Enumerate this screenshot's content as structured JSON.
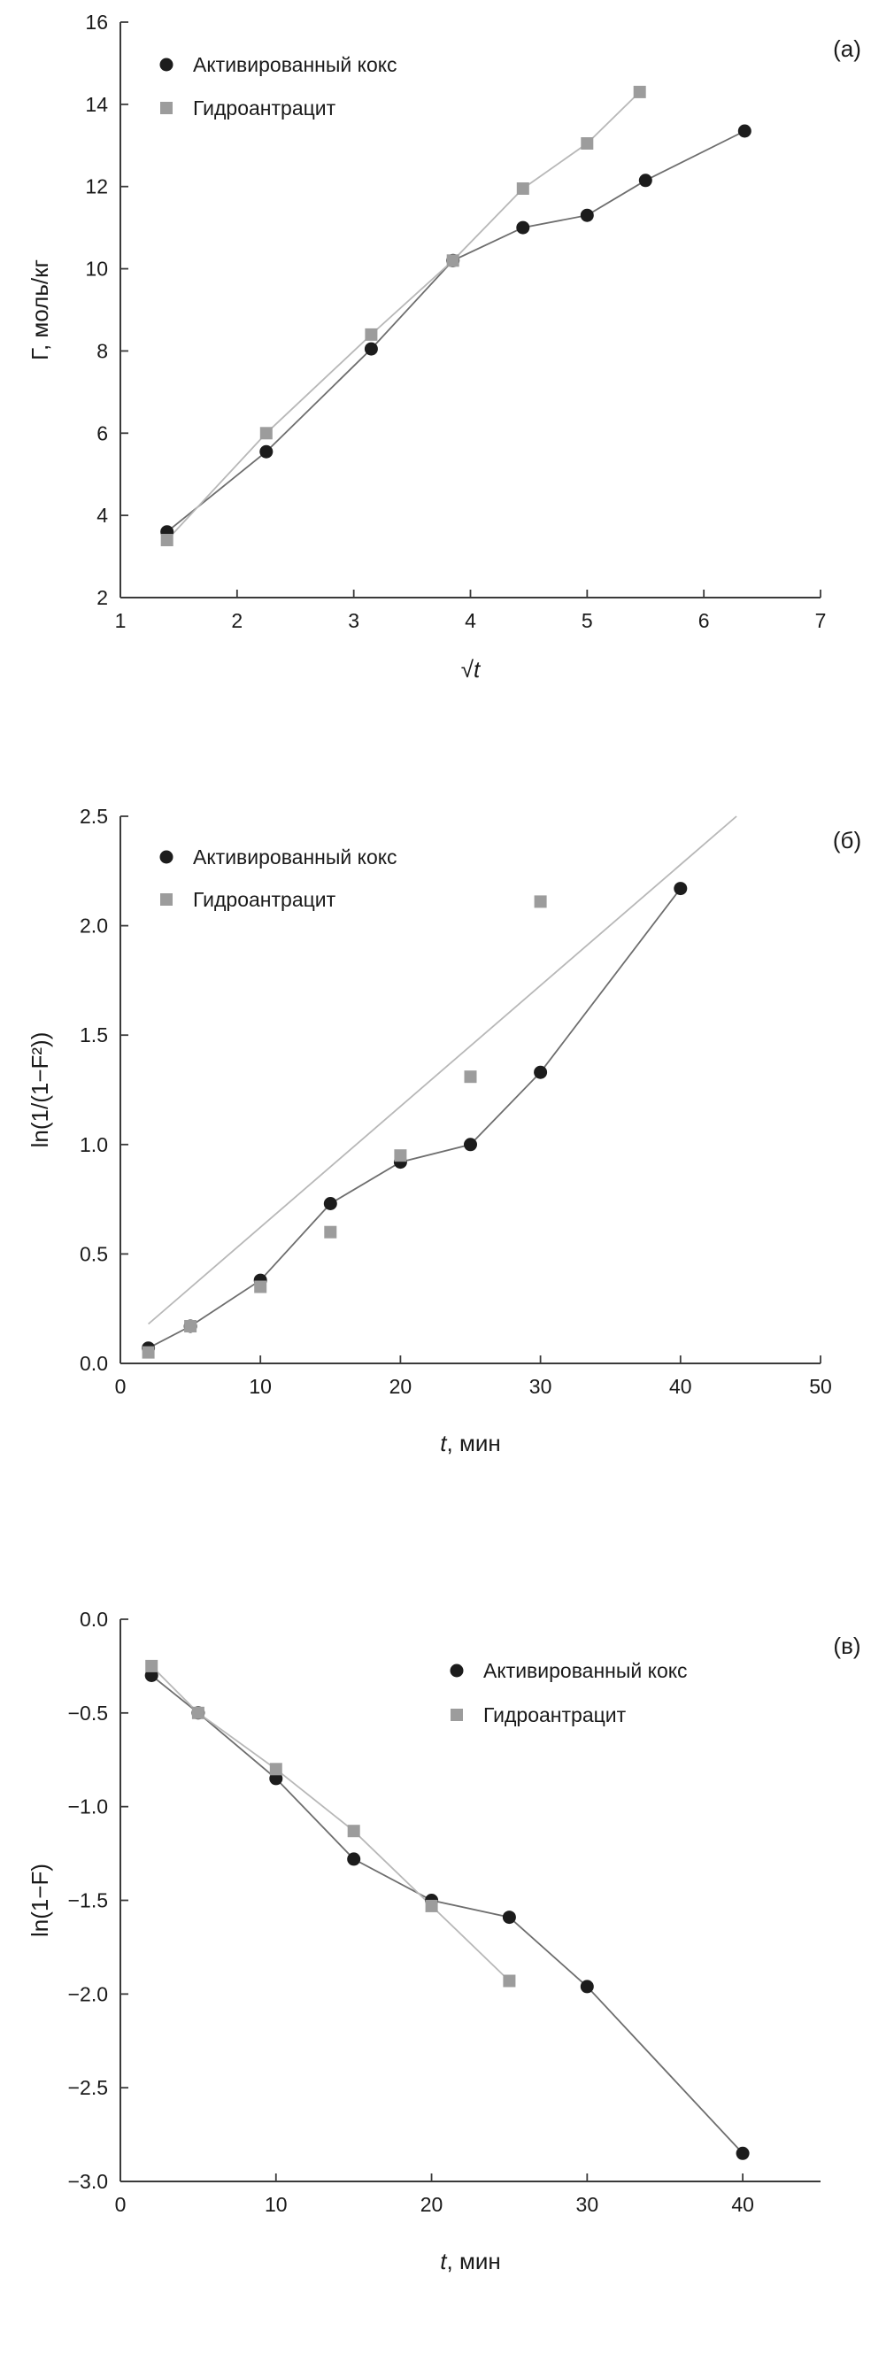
{
  "page": {
    "background": "#ffffff"
  },
  "colors": {
    "series1_marker": "#1c1c1c",
    "series2_marker": "#9c9c9c",
    "dark_line": "#6e6e6e",
    "light_line": "#b8b8b8",
    "axis": "#3a3a3a",
    "text": "#1a1a1a"
  },
  "chart_data": [
    {
      "id": "a",
      "type": "scatter",
      "corner_label": "(а)",
      "ylabel": "Г, моль/кг",
      "xlabel_parts": [
        {
          "text": "√",
          "italic": false
        },
        {
          "text": "t",
          "italic": true
        }
      ],
      "xlim": [
        1,
        7
      ],
      "ylim": [
        2,
        16
      ],
      "xticks": [
        1,
        2,
        3,
        4,
        5,
        6,
        7
      ],
      "xtick_labels": [
        "1",
        "2",
        "3",
        "4",
        "5",
        "6",
        "7"
      ],
      "yticks": [
        2,
        4,
        6,
        8,
        10,
        12,
        14,
        16
      ],
      "ytick_labels": [
        "2",
        "4",
        "6",
        "8",
        "10",
        "12",
        "14",
        "16"
      ],
      "legend": {
        "position": "top-left",
        "items": [
          {
            "label": "Активированный кокс",
            "marker": "circle",
            "color": "#1c1c1c"
          },
          {
            "label": "Гидроантрацит",
            "marker": "square",
            "color": "#9c9c9c"
          }
        ]
      },
      "series": [
        {
          "name": "Активированный кокс",
          "marker": "circle",
          "color": "#1c1c1c",
          "points": [
            [
              1.4,
              3.6
            ],
            [
              2.25,
              5.55
            ],
            [
              3.15,
              8.05
            ],
            [
              3.85,
              10.2
            ],
            [
              4.45,
              11.0
            ],
            [
              5.0,
              11.3
            ],
            [
              5.5,
              12.15
            ],
            [
              6.35,
              13.35
            ]
          ]
        },
        {
          "name": "Гидроантрацит",
          "marker": "square",
          "color": "#9c9c9c",
          "points": [
            [
              1.4,
              3.4
            ],
            [
              2.25,
              6.0
            ],
            [
              3.15,
              8.4
            ],
            [
              3.85,
              10.2
            ],
            [
              4.45,
              11.95
            ],
            [
              5.0,
              13.05
            ],
            [
              5.45,
              14.3
            ]
          ]
        }
      ],
      "lines": [
        {
          "series": "Активированный кокс",
          "color": "#6e6e6e",
          "width": 1.8,
          "points": [
            [
              1.4,
              3.6
            ],
            [
              2.25,
              5.55
            ],
            [
              3.15,
              8.05
            ],
            [
              3.85,
              10.2
            ],
            [
              4.45,
              11.0
            ],
            [
              5.0,
              11.3
            ],
            [
              5.5,
              12.15
            ],
            [
              6.35,
              13.35
            ]
          ]
        },
        {
          "series": "Гидроантрацит",
          "color": "#b8b8b8",
          "width": 1.8,
          "points": [
            [
              1.4,
              3.4
            ],
            [
              2.25,
              6.0
            ],
            [
              3.15,
              8.4
            ],
            [
              3.85,
              10.2
            ],
            [
              4.45,
              11.95
            ],
            [
              5.0,
              13.05
            ],
            [
              5.45,
              14.3
            ]
          ]
        }
      ]
    },
    {
      "id": "b",
      "type": "scatter",
      "corner_label": "(б)",
      "ylabel": "ln(1/(1−F²))",
      "xlabel_parts": [
        {
          "text": "t",
          "italic": true
        },
        {
          "text": ", мин",
          "italic": false
        }
      ],
      "xlim": [
        0,
        50
      ],
      "ylim": [
        0,
        2.5
      ],
      "xticks": [
        0,
        10,
        20,
        30,
        40,
        50
      ],
      "xtick_labels": [
        "0",
        "10",
        "20",
        "30",
        "40",
        "50"
      ],
      "yticks": [
        0,
        0.5,
        1,
        1.5,
        2,
        2.5
      ],
      "ytick_labels": [
        "0.0",
        "0.5",
        "1.0",
        "1.5",
        "2.0",
        "2.5"
      ],
      "legend": {
        "position": "top-left",
        "items": [
          {
            "label": "Активированный кокс",
            "marker": "circle",
            "color": "#1c1c1c"
          },
          {
            "label": "Гидроантрацит",
            "marker": "square",
            "color": "#9c9c9c"
          }
        ]
      },
      "series": [
        {
          "name": "Активированный кокс",
          "marker": "circle",
          "color": "#1c1c1c",
          "points": [
            [
              2,
              0.07
            ],
            [
              5,
              0.17
            ],
            [
              10,
              0.38
            ],
            [
              15,
              0.73
            ],
            [
              20,
              0.92
            ],
            [
              25,
              1.0
            ],
            [
              30,
              1.33
            ],
            [
              40,
              2.17
            ]
          ]
        },
        {
          "name": "Гидроантрацит",
          "marker": "square",
          "color": "#9c9c9c",
          "points": [
            [
              2,
              0.05
            ],
            [
              5,
              0.17
            ],
            [
              10,
              0.35
            ],
            [
              15,
              0.6
            ],
            [
              20,
              0.95
            ],
            [
              25,
              1.31
            ],
            [
              30,
              2.11
            ]
          ]
        }
      ],
      "lines": [
        {
          "series": "Активированный кокс",
          "color": "#6e6e6e",
          "width": 1.8,
          "points": [
            [
              2,
              0.07
            ],
            [
              5,
              0.17
            ],
            [
              10,
              0.38
            ],
            [
              15,
              0.73
            ],
            [
              20,
              0.92
            ],
            [
              25,
              1.0
            ],
            [
              30,
              1.33
            ],
            [
              40,
              2.17
            ]
          ]
        },
        {
          "series": "Гидроантрацит",
          "color": "#b8b8b8",
          "width": 1.8,
          "points": [
            [
              2,
              0.18
            ],
            [
              44,
              2.5
            ]
          ]
        }
      ]
    },
    {
      "id": "v",
      "type": "scatter",
      "corner_label": "(в)",
      "ylabel": "ln(1−F)",
      "xlabel_parts": [
        {
          "text": "t",
          "italic": true
        },
        {
          "text": ", мин",
          "italic": false
        }
      ],
      "xlim": [
        0,
        45
      ],
      "ylim": [
        -3,
        0
      ],
      "xticks": [
        0,
        10,
        20,
        30,
        40
      ],
      "xtick_labels": [
        "0",
        "10",
        "20",
        "30",
        "40"
      ],
      "yticks": [
        -3,
        -2.5,
        -2,
        -1.5,
        -1,
        -0.5,
        0
      ],
      "ytick_labels": [
        "−3.0",
        "−2.5",
        "−2.0",
        "−1.5",
        "−1.0",
        "−0.5",
        "0.0"
      ],
      "legend": {
        "position": "top-center-right",
        "items": [
          {
            "label": "Активированный кокс",
            "marker": "circle",
            "color": "#1c1c1c"
          },
          {
            "label": "Гидроантрацит",
            "marker": "square",
            "color": "#9c9c9c"
          }
        ]
      },
      "series": [
        {
          "name": "Активированный кокс",
          "marker": "circle",
          "color": "#1c1c1c",
          "points": [
            [
              2,
              -0.3
            ],
            [
              5,
              -0.5
            ],
            [
              10,
              -0.85
            ],
            [
              15,
              -1.28
            ],
            [
              20,
              -1.5
            ],
            [
              25,
              -1.59
            ],
            [
              30,
              -1.96
            ],
            [
              40,
              -2.85
            ]
          ]
        },
        {
          "name": "Гидроантрацит",
          "marker": "square",
          "color": "#9c9c9c",
          "points": [
            [
              2,
              -0.25
            ],
            [
              5,
              -0.5
            ],
            [
              10,
              -0.8
            ],
            [
              15,
              -1.13
            ],
            [
              20,
              -1.53
            ],
            [
              25,
              -1.93
            ]
          ]
        }
      ],
      "lines": [
        {
          "series": "Активированный кокс",
          "color": "#6e6e6e",
          "width": 1.8,
          "points": [
            [
              2,
              -0.3
            ],
            [
              5,
              -0.5
            ],
            [
              10,
              -0.85
            ],
            [
              15,
              -1.28
            ],
            [
              20,
              -1.5
            ],
            [
              25,
              -1.59
            ],
            [
              30,
              -1.96
            ],
            [
              40,
              -2.85
            ]
          ]
        },
        {
          "series": "Гидроантрацит",
          "color": "#b8b8b8",
          "width": 1.8,
          "points": [
            [
              2,
              -0.25
            ],
            [
              5,
              -0.5
            ],
            [
              10,
              -0.8
            ],
            [
              15,
              -1.13
            ],
            [
              20,
              -1.53
            ],
            [
              25,
              -1.93
            ]
          ]
        }
      ]
    }
  ]
}
